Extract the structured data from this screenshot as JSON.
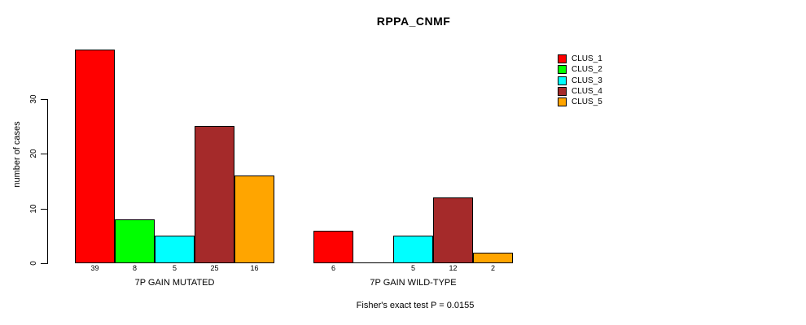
{
  "chart_data": {
    "type": "bar",
    "title": "RPPA_CNMF",
    "ylabel": "number of cases",
    "xlabel": "",
    "yticks": [
      0,
      10,
      20,
      30
    ],
    "ylim": [
      0,
      40
    ],
    "grid": false,
    "legend_position": "right",
    "background_color": "#ffffff",
    "axis_color": "#000000",
    "categories": [
      "7P GAIN MUTATED",
      "7P GAIN WILD-TYPE"
    ],
    "series": [
      {
        "name": "CLUS_1",
        "color": "#ff0000",
        "values": [
          39,
          6
        ]
      },
      {
        "name": "CLUS_2",
        "color": "#00ff00",
        "values": [
          8,
          0
        ]
      },
      {
        "name": "CLUS_3",
        "color": "#00ffff",
        "values": [
          5,
          5
        ]
      },
      {
        "name": "CLUS_4",
        "color": "#a52a2a",
        "values": [
          25,
          12
        ]
      },
      {
        "name": "CLUS_5",
        "color": "#ffa500",
        "values": [
          16,
          2
        ]
      }
    ],
    "bar_labels": [
      [
        "39",
        "8",
        "5",
        "25",
        "16"
      ],
      [
        "6",
        "",
        "5",
        "12",
        "2"
      ]
    ],
    "footnote": "Fisher's exact test P = 0.0155"
  }
}
